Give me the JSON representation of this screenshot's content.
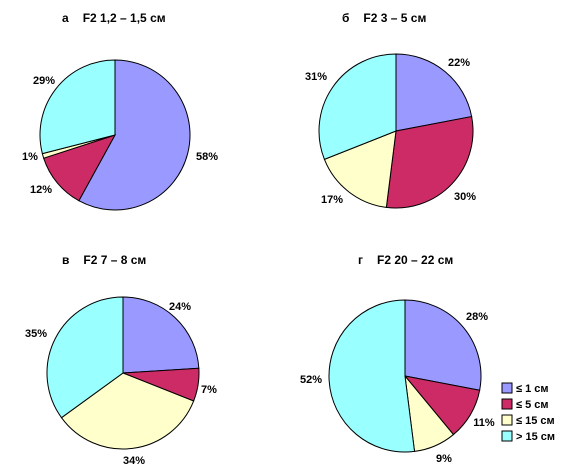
{
  "chart_data": [
    {
      "type": "pie",
      "panel_letter": "а",
      "title": "F2  1,2 – 1,5 см",
      "categories": [
        "≤ 1 см",
        "≤ 5 см",
        "≤ 15 см",
        "> 15 см"
      ],
      "values": [
        58,
        12,
        1,
        29
      ],
      "labels": [
        "58%",
        "12%",
        "1%",
        "29%"
      ]
    },
    {
      "type": "pie",
      "panel_letter": "б",
      "title": "F2  3 – 5 см",
      "categories": [
        "≤ 1 см",
        "≤ 5 см",
        "≤ 15 см",
        "> 15 см"
      ],
      "values": [
        22,
        30,
        17,
        31
      ],
      "labels": [
        "22%",
        "30%",
        "17%",
        "31%"
      ]
    },
    {
      "type": "pie",
      "panel_letter": "в",
      "title": "F2  7 – 8 см",
      "categories": [
        "≤ 1 см",
        "≤ 5 см",
        "≤ 15 см",
        "> 15 см"
      ],
      "values": [
        24,
        7,
        34,
        35
      ],
      "labels": [
        "24%",
        "7%",
        "34%",
        "35%"
      ]
    },
    {
      "type": "pie",
      "panel_letter": "г",
      "title": "F2  20 – 22 см",
      "categories": [
        "≤ 1 см",
        "≤ 5 см",
        "≤ 15 см",
        "> 15 см"
      ],
      "values": [
        28,
        11,
        9,
        52
      ],
      "labels": [
        "28%",
        "11%",
        "9%",
        "52%"
      ]
    }
  ],
  "legend": {
    "position": "bottom-right",
    "items": [
      {
        "label": "≤ 1 см",
        "color": "#9999ff"
      },
      {
        "label": "≤ 5 см",
        "color": "#cc2b66"
      },
      {
        "label": "≤ 15 см",
        "color": "#ffffcc"
      },
      {
        "label": "> 15 см",
        "color": "#99ffff"
      }
    ]
  }
}
